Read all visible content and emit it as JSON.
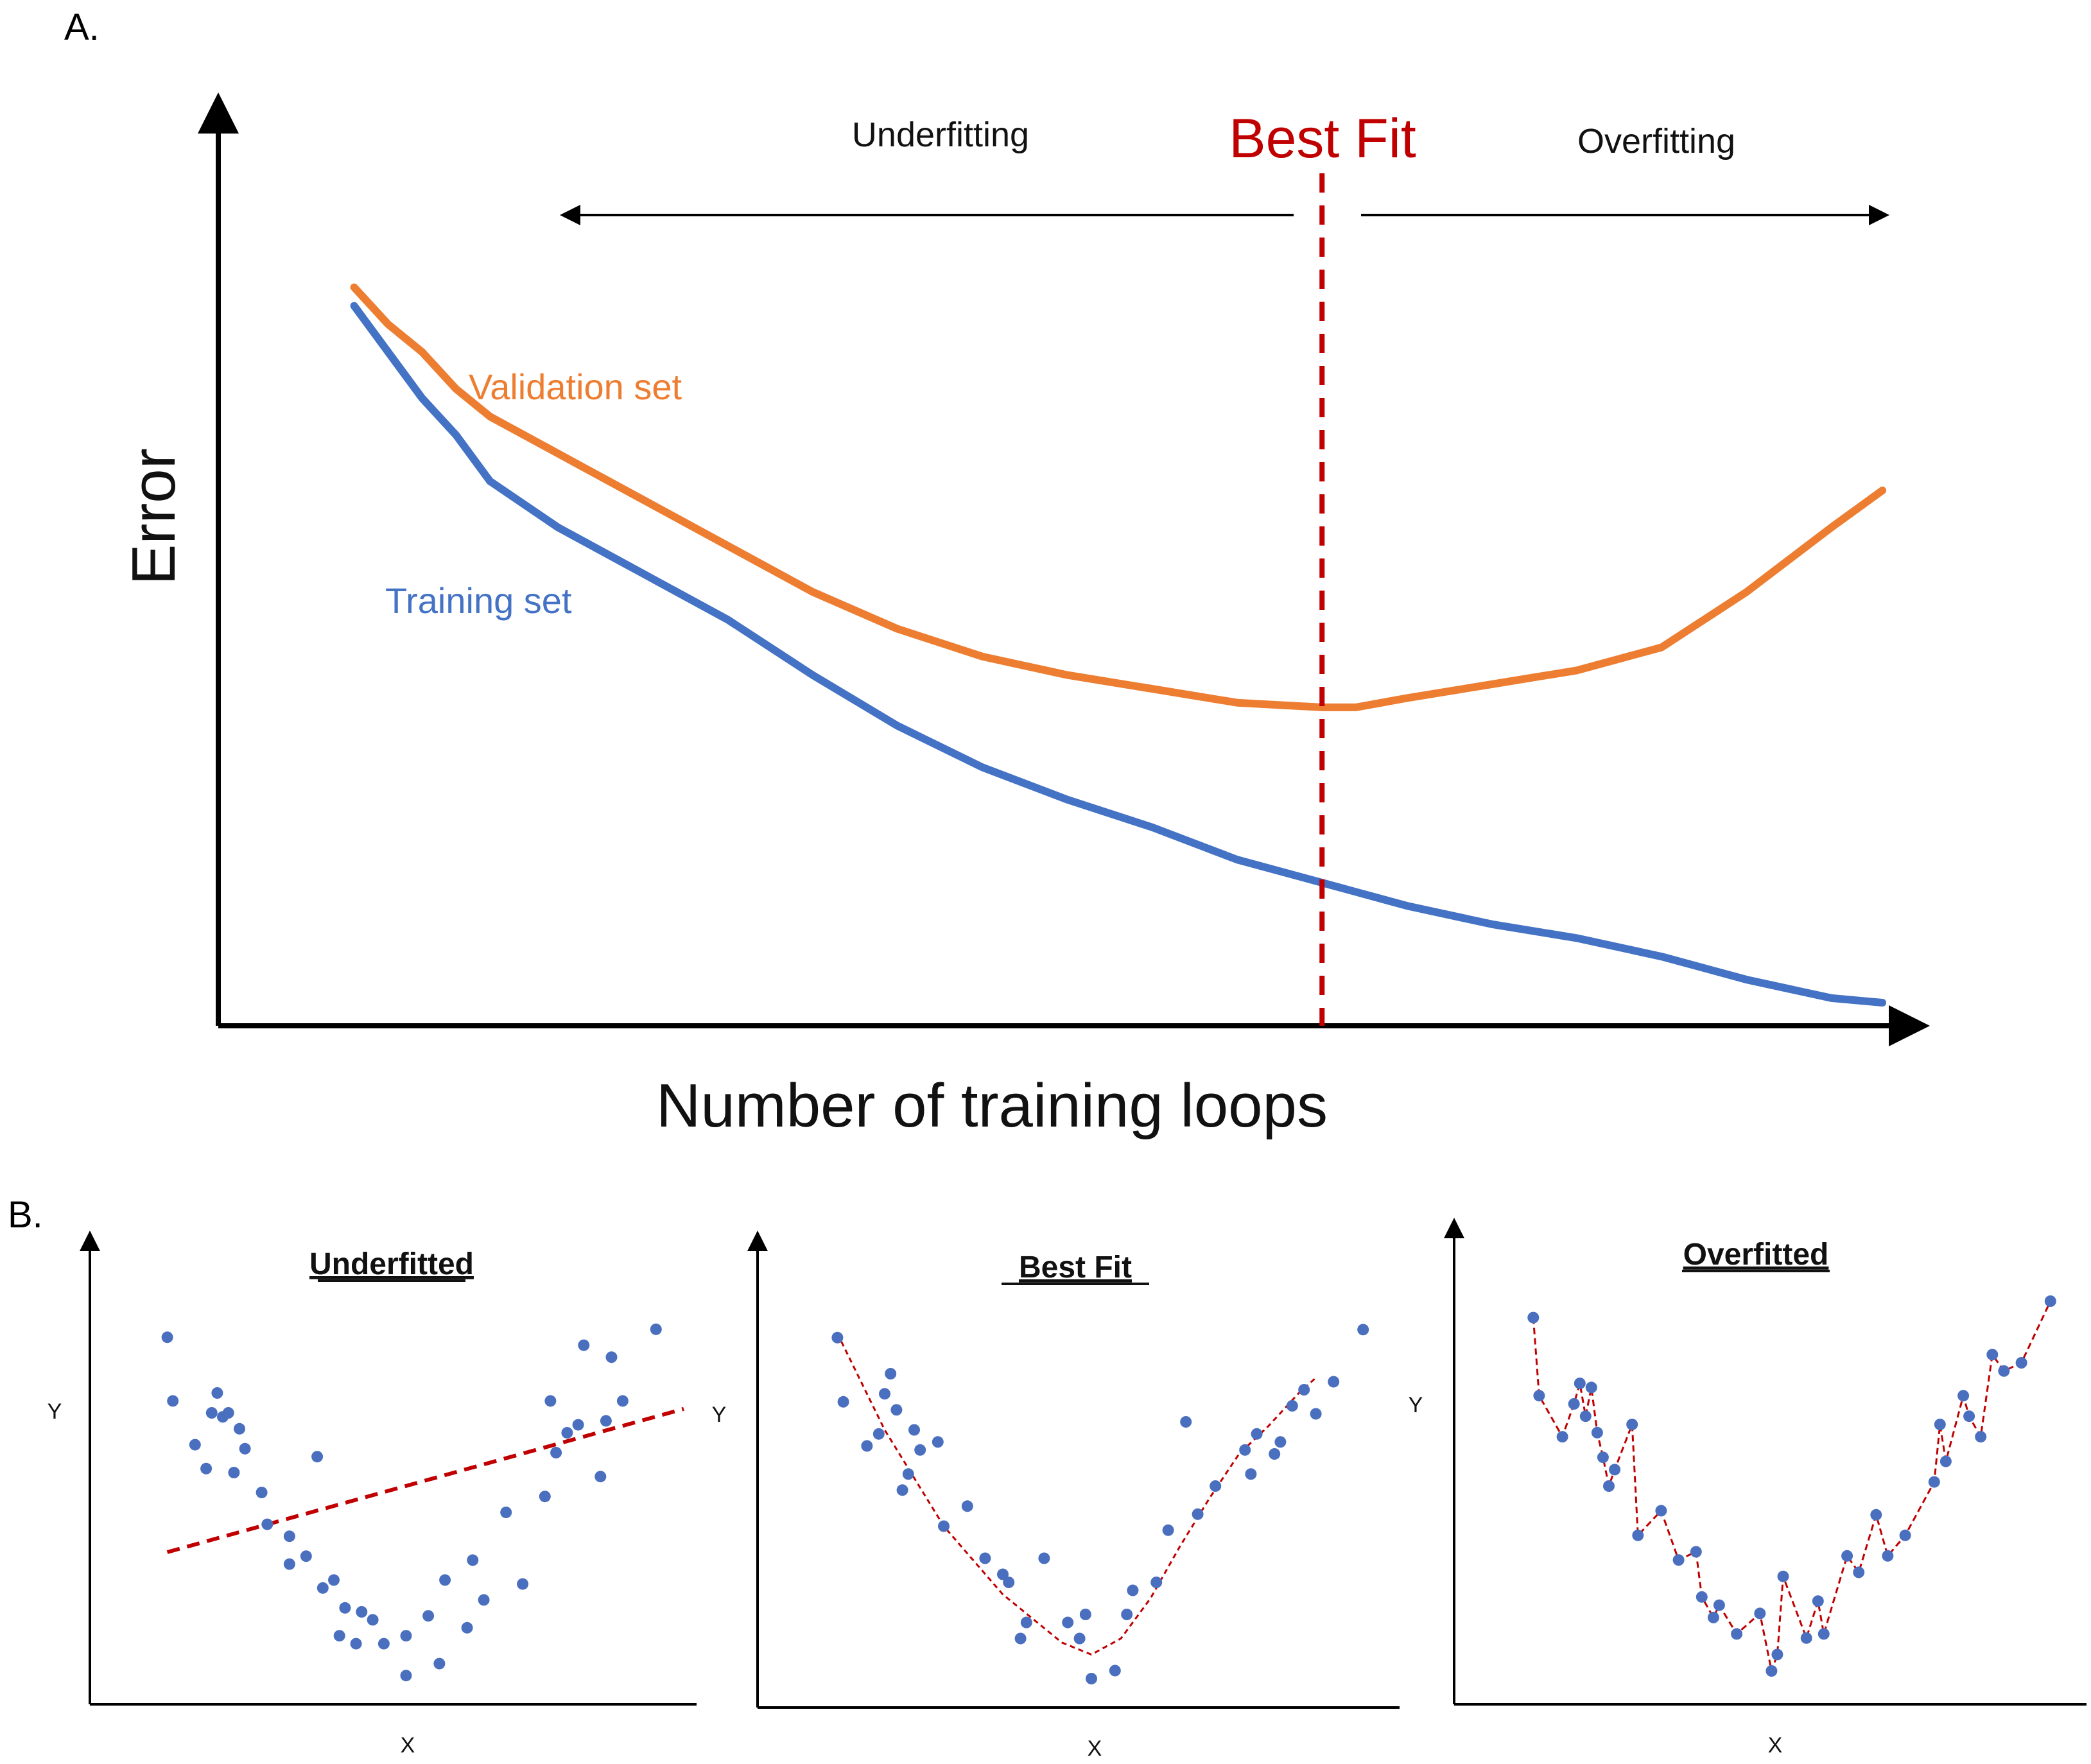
{
  "panel_labels": {
    "a": "A.",
    "b": "B."
  },
  "colors": {
    "training": "#4472c4",
    "validation": "#ed7d31",
    "best_fit_line": "#c00000",
    "points": "#4a6fbf",
    "axis": "#000000"
  },
  "chart_data": [
    {
      "type": "line",
      "panel": "A",
      "title": "",
      "xlabel": "Number of training loops",
      "ylabel": "Error",
      "xlim": [
        0,
        100
      ],
      "ylim": [
        0,
        100
      ],
      "grid": false,
      "ticks": "none",
      "series": [
        {
          "name": "Validation set",
          "x": [
            8,
            10,
            12,
            14,
            16,
            20,
            25,
            30,
            35,
            40,
            45,
            50,
            55,
            60,
            65,
            67,
            70,
            75,
            80,
            85,
            90,
            95,
            98
          ],
          "values": [
            80,
            76,
            73,
            69,
            66,
            62,
            57,
            52,
            47,
            43,
            40,
            38,
            36.5,
            35,
            34.5,
            34.5,
            35.5,
            37,
            38.5,
            41,
            47,
            54,
            58
          ]
        },
        {
          "name": "Training set",
          "x": [
            8,
            10,
            12,
            14,
            16,
            20,
            25,
            30,
            35,
            40,
            45,
            50,
            55,
            60,
            65,
            67,
            70,
            75,
            80,
            85,
            90,
            95,
            98
          ],
          "values": [
            78,
            73,
            68,
            64,
            59,
            54,
            49,
            44,
            38,
            32.5,
            28,
            24.5,
            21.5,
            18,
            15.5,
            14.5,
            13,
            11,
            9.5,
            7.5,
            5,
            3,
            2.5
          ]
        }
      ],
      "annotations": {
        "best_fit_x": 65,
        "best_fit_label": "Best Fit",
        "underfitting_label": "Underfitting",
        "overfitting_label": "Overfitting",
        "validation_label": "Validation set",
        "training_label": "Training set"
      }
    },
    {
      "type": "scatter",
      "panel": "B1",
      "title": "Underfitted",
      "xlabel": "X",
      "ylabel": "Y",
      "xlim": [
        0,
        10
      ],
      "ylim": [
        0,
        10
      ],
      "points": {
        "x": [
          0.7,
          0.8,
          1.2,
          1.4,
          1.5,
          1.6,
          1.7,
          1.8,
          1.9,
          2.0,
          2.1,
          2.4,
          2.5,
          2.9,
          2.9,
          3.2,
          3.4,
          3.5,
          3.7,
          3.8,
          3.9,
          4.1,
          4.2,
          4.4,
          4.6,
          5.0,
          5.0,
          5.4,
          5.6,
          5.7,
          6.1,
          6.2,
          6.4,
          6.8,
          7.1,
          7.5,
          7.6,
          7.7,
          7.9,
          8.1,
          8.2,
          8.5,
          8.6,
          8.7,
          8.9,
          9.5
        ],
        "y": [
          8.9,
          7.3,
          6.2,
          5.6,
          7.0,
          7.5,
          6.9,
          7.0,
          5.5,
          6.6,
          6.1,
          5.0,
          4.2,
          3.9,
          3.2,
          3.4,
          5.9,
          2.6,
          2.8,
          1.4,
          2.1,
          1.2,
          2.0,
          1.8,
          1.2,
          0.4,
          1.4,
          1.9,
          0.7,
          2.8,
          1.6,
          3.3,
          2.3,
          4.5,
          2.7,
          4.9,
          7.3,
          6.0,
          6.5,
          6.7,
          8.7,
          5.4,
          6.8,
          8.4,
          7.3,
          9.1
        ]
      },
      "fit_line": {
        "x": [
          0.7,
          10
        ],
        "y": [
          3.5,
          7.1
        ]
      }
    },
    {
      "type": "scatter",
      "panel": "B2",
      "title": "Best Fit",
      "xlabel": "X",
      "ylabel": "Y",
      "xlim": [
        0,
        10
      ],
      "ylim": [
        0,
        10
      ],
      "points": {
        "x": [
          0.7,
          0.8,
          1.2,
          1.4,
          1.5,
          1.6,
          1.7,
          1.8,
          1.9,
          2.0,
          2.1,
          2.4,
          2.5,
          2.9,
          3.2,
          3.5,
          3.6,
          3.8,
          3.9,
          4.2,
          4.6,
          4.8,
          4.9,
          5.0,
          5.4,
          5.6,
          5.7,
          6.1,
          6.3,
          6.6,
          6.8,
          7.1,
          7.6,
          7.7,
          7.8,
          8.1,
          8.2,
          8.4,
          8.6,
          8.8,
          9.1,
          9.6
        ],
        "y": [
          8.9,
          7.3,
          6.2,
          6.5,
          7.5,
          8.0,
          7.1,
          5.1,
          5.5,
          6.6,
          6.1,
          6.3,
          4.2,
          4.7,
          3.4,
          3.0,
          2.8,
          1.4,
          1.8,
          3.4,
          1.8,
          1.4,
          2.0,
          0.4,
          0.6,
          2.0,
          2.6,
          2.8,
          4.1,
          6.8,
          4.5,
          5.2,
          6.1,
          5.5,
          6.5,
          6.0,
          6.3,
          7.2,
          7.6,
          7.0,
          7.8,
          9.1
        ]
      },
      "fit_curve": {
        "x": [
          0.7,
          1.5,
          2.5,
          3.5,
          4.5,
          5.0,
          5.5,
          6.0,
          6.5,
          7.0,
          7.5,
          8.0,
          8.5,
          8.8
        ],
        "y": [
          9.0,
          6.6,
          4.2,
          2.5,
          1.3,
          1.0,
          1.4,
          2.4,
          3.7,
          4.9,
          6.0,
          6.7,
          7.5,
          7.9
        ]
      }
    },
    {
      "type": "scatter",
      "panel": "B3",
      "title": "Overfitted",
      "xlabel": "X",
      "ylabel": "Y",
      "xlim": [
        0,
        10
      ],
      "ylim": [
        0,
        10
      ],
      "points": {
        "x": [
          0.7,
          0.8,
          1.2,
          1.4,
          1.5,
          1.6,
          1.7,
          1.8,
          1.9,
          2.0,
          2.1,
          2.4,
          2.5,
          2.9,
          3.2,
          3.5,
          3.6,
          3.8,
          3.9,
          4.2,
          4.6,
          4.8,
          4.9,
          5.0,
          5.4,
          5.6,
          5.7,
          6.1,
          6.3,
          6.6,
          6.8,
          7.1,
          7.6,
          7.7,
          7.8,
          8.1,
          8.2,
          8.4,
          8.6,
          8.8,
          9.1,
          9.6
        ],
        "y": [
          9.1,
          7.2,
          6.2,
          7.0,
          7.5,
          6.7,
          7.4,
          6.3,
          5.7,
          5.0,
          5.4,
          6.5,
          3.8,
          4.4,
          3.2,
          3.4,
          2.3,
          1.8,
          2.1,
          1.4,
          1.9,
          0.5,
          0.9,
          2.8,
          1.3,
          2.2,
          1.4,
          3.3,
          2.9,
          4.3,
          3.3,
          3.8,
          5.1,
          6.5,
          5.6,
          7.2,
          6.7,
          6.2,
          8.2,
          7.8,
          8.0,
          9.5
        ]
      }
    }
  ]
}
